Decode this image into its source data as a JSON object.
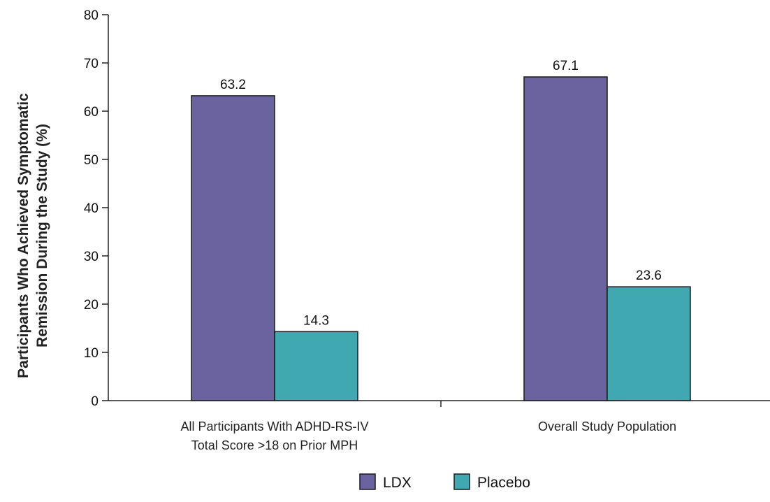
{
  "chart_data": {
    "type": "bar",
    "ylabel_lines": [
      "Participants Who Achieved Symptomatic",
      "Remission During the Study (%)"
    ],
    "categories": [
      [
        "All Participants With ADHD-RS-IV",
        "Total Score >18 on Prior MPH"
      ],
      [
        "Overall Study Population"
      ]
    ],
    "series": [
      {
        "name": "LDX",
        "values": [
          63.2,
          67.1
        ],
        "labels": [
          "63.2",
          "67.1"
        ],
        "color": "#6b63a0"
      },
      {
        "name": "Placebo",
        "values": [
          14.3,
          23.6
        ],
        "labels": [
          "14.3",
          "23.6"
        ],
        "color": "#3fa8b1"
      }
    ],
    "ylim": [
      0,
      80
    ],
    "yticks": [
      0,
      10,
      20,
      30,
      40,
      50,
      60,
      70,
      80
    ],
    "grid": false,
    "legend_position": "bottom-center"
  }
}
